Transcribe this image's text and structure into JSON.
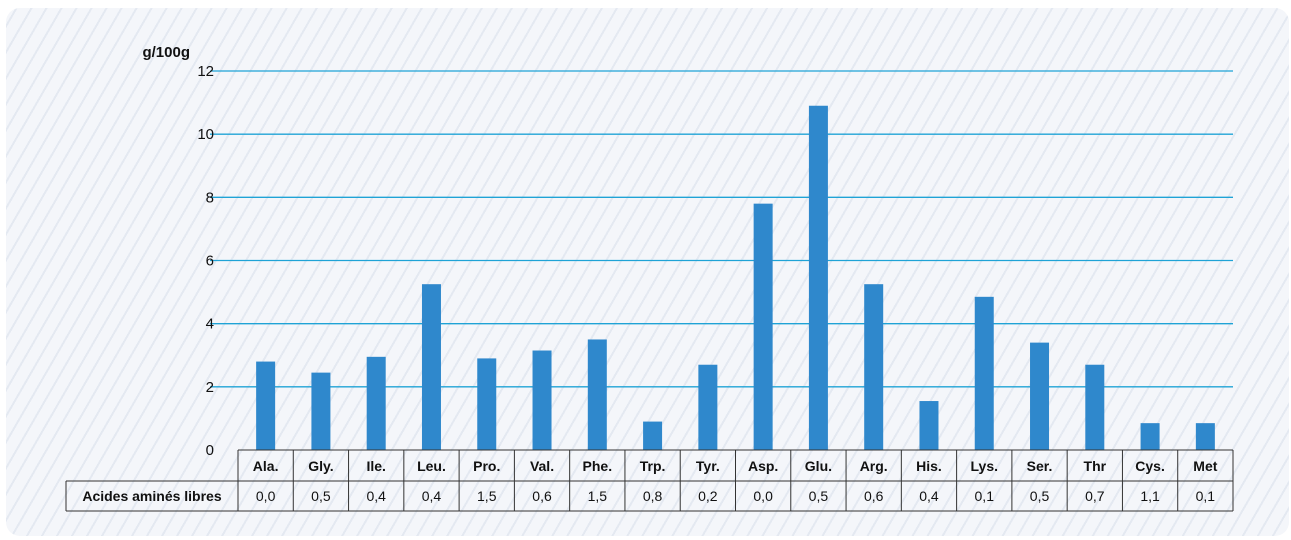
{
  "colors": {
    "bar": "#2f88cc",
    "gridline": "#1fa3d6",
    "background": "#f4f6fa"
  },
  "chart_data": {
    "type": "bar",
    "ylabel": "g/100g",
    "ylim": [
      0,
      12
    ],
    "yticks": [
      "0",
      "2",
      "4",
      "6",
      "8",
      "10",
      "12"
    ],
    "grid": true,
    "categories": [
      "Ala.",
      "Gly.",
      "Ile.",
      "Leu.",
      "Pro.",
      "Val.",
      "Phe.",
      "Trp.",
      "Tyr.",
      "Asp.",
      "Glu.",
      "Arg.",
      "His.",
      "Lys.",
      "Ser.",
      "Thr",
      "Cys.",
      "Met"
    ],
    "values": [
      2.8,
      2.45,
      2.95,
      5.25,
      2.9,
      3.15,
      3.5,
      0.9,
      2.7,
      7.8,
      10.9,
      5.25,
      1.55,
      4.85,
      3.4,
      2.7,
      0.85,
      0.85
    ],
    "table": {
      "row_label": "Acides aminés libres",
      "values": [
        "0,0",
        "0,5",
        "0,4",
        "0,4",
        "1,5",
        "0,6",
        "1,5",
        "0,8",
        "0,2",
        "0,0",
        "0,5",
        "0,6",
        "0,4",
        "0,1",
        "0,5",
        "0,7",
        "1,1",
        "0,1"
      ]
    }
  }
}
